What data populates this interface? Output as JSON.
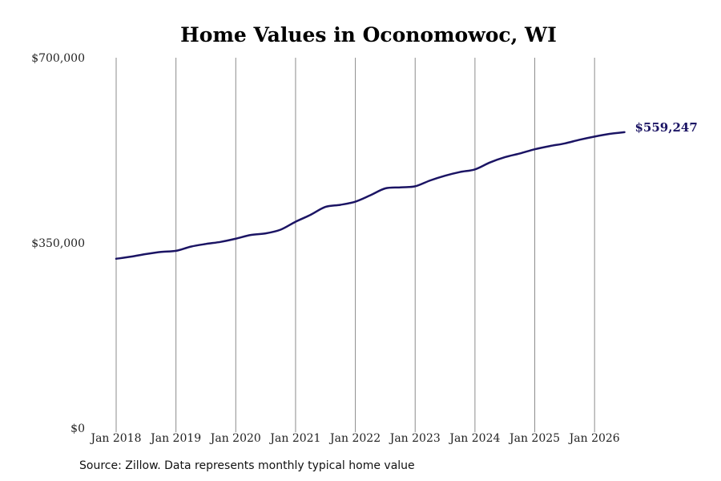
{
  "chart_data": {
    "type": "line",
    "title": "Home Values in Oconomowoc, WI",
    "xlabel": "",
    "ylabel": "",
    "ylim": [
      0,
      700000
    ],
    "y_ticks": [
      {
        "value": 0,
        "label": "$0"
      },
      {
        "value": 350000,
        "label": "$350,000"
      },
      {
        "value": 700000,
        "label": "$700,000"
      }
    ],
    "x_ticks": [
      {
        "year": 2018,
        "label": "Jan 2018"
      },
      {
        "year": 2019,
        "label": "Jan 2019"
      },
      {
        "year": 2020,
        "label": "Jan 2020"
      },
      {
        "year": 2021,
        "label": "Jan 2021"
      },
      {
        "year": 2022,
        "label": "Jan 2022"
      },
      {
        "year": 2023,
        "label": "Jan 2023"
      },
      {
        "year": 2024,
        "label": "Jan 2024"
      },
      {
        "year": 2025,
        "label": "Jan 2025"
      },
      {
        "year": 2026,
        "label": "Jan 2026"
      }
    ],
    "xlim": [
      2018,
      2026.5
    ],
    "grid": "vertical",
    "series": [
      {
        "color": "#1b1464",
        "end_label": "$559,247",
        "points": [
          [
            "2018-01",
            320000
          ],
          [
            "2018-04",
            324000
          ],
          [
            "2018-07",
            329000
          ],
          [
            "2018-10",
            333000
          ],
          [
            "2019-01",
            335000
          ],
          [
            "2019-04",
            343000
          ],
          [
            "2019-07",
            348000
          ],
          [
            "2019-10",
            352000
          ],
          [
            "2020-01",
            358000
          ],
          [
            "2020-04",
            365000
          ],
          [
            "2020-07",
            368000
          ],
          [
            "2020-10",
            375000
          ],
          [
            "2021-01",
            390000
          ],
          [
            "2021-04",
            403000
          ],
          [
            "2021-07",
            418000
          ],
          [
            "2021-10",
            422000
          ],
          [
            "2022-01",
            428000
          ],
          [
            "2022-04",
            440000
          ],
          [
            "2022-07",
            453000
          ],
          [
            "2022-10",
            455000
          ],
          [
            "2023-01",
            457000
          ],
          [
            "2023-04",
            468000
          ],
          [
            "2023-07",
            477000
          ],
          [
            "2023-10",
            484000
          ],
          [
            "2024-01",
            489000
          ],
          [
            "2024-04",
            502000
          ],
          [
            "2024-07",
            512000
          ],
          [
            "2024-10",
            519000
          ],
          [
            "2025-01",
            527000
          ],
          [
            "2025-04",
            533000
          ],
          [
            "2025-07",
            538000
          ],
          [
            "2025-10",
            545000
          ],
          [
            "2026-01",
            551000
          ],
          [
            "2026-04",
            556000
          ],
          [
            "2026-07",
            559247
          ]
        ]
      }
    ]
  },
  "source": "Source: Zillow. Data represents monthly typical home value"
}
